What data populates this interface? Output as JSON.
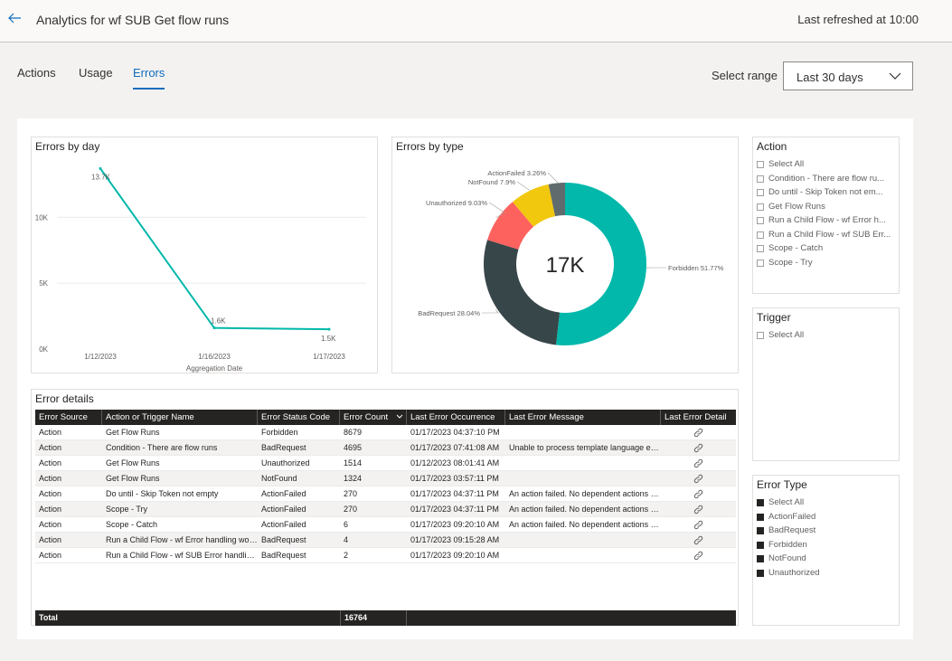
{
  "header": {
    "title": "Analytics for wf SUB Get flow runs",
    "last_refreshed": "Last refreshed at 10:00",
    "back_icon": "arrow-left-icon"
  },
  "tabs": [
    {
      "label": "Actions",
      "active": false
    },
    {
      "label": "Usage",
      "active": false
    },
    {
      "label": "Errors",
      "active": true
    }
  ],
  "range": {
    "label": "Select range",
    "value": "Last 30 days"
  },
  "errors_by_day": {
    "title": "Errors by day",
    "chart_data": {
      "type": "line",
      "x": [
        "1/12/2023",
        "1/16/2023",
        "1/17/2023"
      ],
      "values": [
        13700,
        1600,
        1500
      ],
      "data_labels": [
        "13.7K",
        "1.6K",
        "1.5K"
      ],
      "xlabel": "Aggregation Date",
      "ylabel": "",
      "yticks": [
        0,
        5000,
        10000
      ],
      "ytick_labels": [
        "0K",
        "5K",
        "10K"
      ],
      "ylim": [
        0,
        14000
      ],
      "color": "#01b8aa"
    }
  },
  "errors_by_type": {
    "title": "Errors by type",
    "center_label": "17K",
    "chart_data": {
      "type": "pie",
      "categories": [
        "Forbidden",
        "BadRequest",
        "Unauthorized",
        "NotFound",
        "ActionFailed"
      ],
      "values": [
        51.77,
        28.04,
        9.03,
        7.9,
        3.26
      ],
      "labels": [
        "Forbidden 51.77%",
        "BadRequest 28.04%",
        "Unauthorized 9.03%",
        "NotFound 7.9%",
        "ActionFailed 3.26%"
      ],
      "colors": [
        "#01b8aa",
        "#374649",
        "#fd625e",
        "#f2c80f",
        "#5f6b6d"
      ]
    }
  },
  "error_details": {
    "title": "Error details",
    "columns": [
      "Error Source",
      "Action or Trigger Name",
      "Error Status Code",
      "Error Count",
      "Last Error Occurrence",
      "Last Error Message",
      "Last Error Detail"
    ],
    "sort_icon": "chevron-down-icon",
    "detail_icon": "link-icon",
    "rows": [
      [
        "Action",
        "Get Flow Runs",
        "Forbidden",
        "8679",
        "01/17/2023 04:37:10 PM",
        ""
      ],
      [
        "Action",
        "Condition - There are flow runs",
        "BadRequest",
        "4695",
        "01/17/2023 07:41:08 AM",
        "Unable to process template language exp..."
      ],
      [
        "Action",
        "Get Flow Runs",
        "Unauthorized",
        "1514",
        "01/12/2023 08:01:41 AM",
        ""
      ],
      [
        "Action",
        "Get Flow Runs",
        "NotFound",
        "1324",
        "01/17/2023 03:57:11 PM",
        ""
      ],
      [
        "Action",
        "Do until - Skip Token not empty",
        "ActionFailed",
        "270",
        "01/17/2023 04:37:11 PM",
        "An action failed. No dependent actions su..."
      ],
      [
        "Action",
        "Scope - Try",
        "ActionFailed",
        "270",
        "01/17/2023 04:37:11 PM",
        "An action failed. No dependent actions su..."
      ],
      [
        "Action",
        "Scope - Catch",
        "ActionFailed",
        "6",
        "01/17/2023 09:20:10 AM",
        "An action failed. No dependent actions su..."
      ],
      [
        "Action",
        "Run a Child Flow - wf Error handling work...",
        "BadRequest",
        "4",
        "01/17/2023 09:15:28 AM",
        ""
      ],
      [
        "Action",
        "Run a Child Flow - wf SUB Error handling ...",
        "BadRequest",
        "2",
        "01/17/2023 09:20:10 AM",
        ""
      ]
    ],
    "total_label": "Total",
    "total_count": "16764"
  },
  "slicers": {
    "action": {
      "title": "Action",
      "items": [
        "Select All",
        "Condition - There are flow ru...",
        "Do until - Skip Token not em...",
        "Get Flow Runs",
        "Run a Child Flow - wf Error h...",
        "Run a Child Flow - wf SUB Err...",
        "Scope - Catch",
        "Scope - Try"
      ]
    },
    "trigger": {
      "title": "Trigger",
      "items": [
        "Select All"
      ]
    },
    "error_type": {
      "title": "Error Type",
      "items": [
        "Select All",
        "ActionFailed",
        "BadRequest",
        "Forbidden",
        "NotFound",
        "Unauthorized"
      ]
    }
  }
}
